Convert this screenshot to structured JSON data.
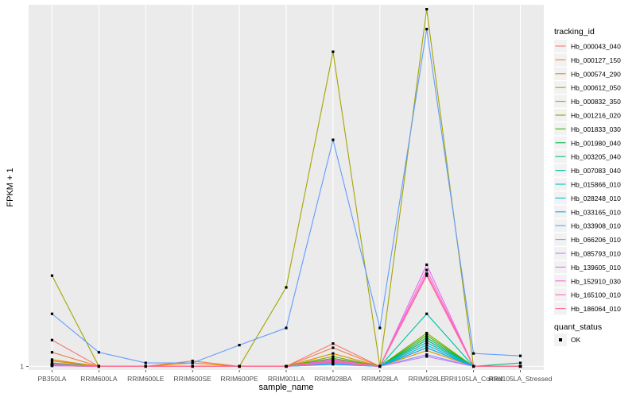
{
  "chart_data": {
    "type": "line",
    "xlabel": "sample_name",
    "ylabel": "FPKM + 1",
    "y_scale": "log",
    "y_ticks": [
      1
    ],
    "y_tick_labels": [
      "1"
    ],
    "ylim": [
      0.95,
      165
    ],
    "grid": true,
    "legend_position": "right",
    "categories": [
      "PB350LA",
      "RRIM600LA",
      "RRIM600LE",
      "RRIM600SE",
      "RRIM600PE",
      "RRIM901LA",
      "RRIM928BA",
      "RRIM928LA",
      "RRIM928LE",
      "RRII105LA_Control",
      "RRII105LA_Stressed"
    ],
    "legend": {
      "title": "tracking_id",
      "shape_title": "quant_status",
      "shape_label": "OK"
    },
    "series": [
      {
        "name": "Hb_000043_040",
        "color": "#F8766D",
        "values": [
          1.45,
          1,
          1,
          1,
          1,
          1,
          1.38,
          1,
          1.4,
          1,
          1
        ]
      },
      {
        "name": "Hb_000127_150",
        "color": "#EF7F49",
        "values": [
          1.22,
          1,
          1,
          1.08,
          1,
          1,
          1.3,
          1,
          1.45,
          1,
          1
        ]
      },
      {
        "name": "Hb_000574_290",
        "color": "#E38900",
        "values": [
          1.1,
          1,
          1,
          1.05,
          1,
          1,
          1.2,
          1,
          1.3,
          1,
          1
        ]
      },
      {
        "name": "Hb_000612_050",
        "color": "#D39200",
        "values": [
          1.08,
          1,
          1,
          1,
          1,
          1,
          1.1,
          1,
          1.25,
          1,
          1
        ]
      },
      {
        "name": "Hb_000832_350",
        "color": "#A3A500",
        "values": [
          3.6,
          1,
          1,
          1,
          1,
          3.05,
          85,
          1,
          155,
          1,
          1
        ]
      },
      {
        "name": "Hb_001216_020",
        "color": "#7CAE00",
        "values": [
          1.05,
          1,
          1,
          1,
          1,
          1,
          1.15,
          1,
          1.6,
          1,
          1
        ]
      },
      {
        "name": "Hb_001833_030",
        "color": "#39B600",
        "values": [
          1.03,
          1,
          1,
          1,
          1,
          1,
          1.12,
          1,
          1.55,
          1,
          1
        ]
      },
      {
        "name": "Hb_001980_040",
        "color": "#00BB4E",
        "values": [
          1.02,
          1,
          1,
          1,
          1,
          1,
          1.1,
          1,
          1.5,
          1,
          1
        ]
      },
      {
        "name": "Hb_003205_040",
        "color": "#00BF7D",
        "values": [
          1.04,
          1,
          1,
          1,
          1,
          1,
          1.08,
          1,
          1.45,
          1,
          1.05
        ]
      },
      {
        "name": "Hb_007083_040",
        "color": "#00C1A3",
        "values": [
          1.01,
          1,
          1,
          1,
          1,
          1,
          1.06,
          1,
          2.1,
          1,
          1
        ]
      },
      {
        "name": "Hb_015866_010",
        "color": "#00BFC4",
        "values": [
          1.02,
          1,
          1,
          1,
          1,
          1,
          1.05,
          1,
          1.4,
          1,
          1
        ]
      },
      {
        "name": "Hb_028248_010",
        "color": "#00B8E5",
        "values": [
          1.01,
          1,
          1,
          1,
          1,
          1,
          1.04,
          1,
          1.35,
          1,
          1
        ]
      },
      {
        "name": "Hb_033165_010",
        "color": "#00A9FF",
        "values": [
          1.03,
          1,
          1,
          1,
          1,
          1,
          1.03,
          1,
          1.3,
          1,
          1
        ]
      },
      {
        "name": "Hb_033908_010",
        "color": "#619CFF",
        "values": [
          2.1,
          1.22,
          1.05,
          1.05,
          1.35,
          1.72,
          24.5,
          1.72,
          117,
          1.2,
          1.16
        ]
      },
      {
        "name": "Hb_066206_010",
        "color": "#9590FF",
        "values": [
          1.02,
          1,
          1,
          1,
          1,
          1,
          1.07,
          1,
          1.18,
          1,
          1
        ]
      },
      {
        "name": "Hb_085793_010",
        "color": "#C77CFF",
        "values": [
          1.01,
          1,
          1,
          1,
          1,
          1,
          1.05,
          1,
          1.15,
          1,
          1
        ]
      },
      {
        "name": "Hb_139605_010",
        "color": "#E76BF3",
        "values": [
          1.03,
          1,
          1,
          1,
          1,
          1,
          1.1,
          1,
          4.2,
          1,
          1
        ]
      },
      {
        "name": "Hb_152910_030",
        "color": "#FA62DB",
        "values": [
          1.02,
          1,
          1,
          1,
          1,
          1,
          1.09,
          1,
          3.9,
          1,
          1
        ]
      },
      {
        "name": "Hb_165100_010",
        "color": "#FF62BC",
        "values": [
          1.01,
          1,
          1,
          1,
          1,
          1,
          1.08,
          1,
          3.7,
          1,
          1
        ]
      },
      {
        "name": "Hb_186064_010",
        "color": "#FF6C91",
        "values": [
          1.02,
          1,
          1,
          1,
          1,
          1,
          1.06,
          1,
          3.6,
          1,
          1
        ]
      }
    ]
  }
}
